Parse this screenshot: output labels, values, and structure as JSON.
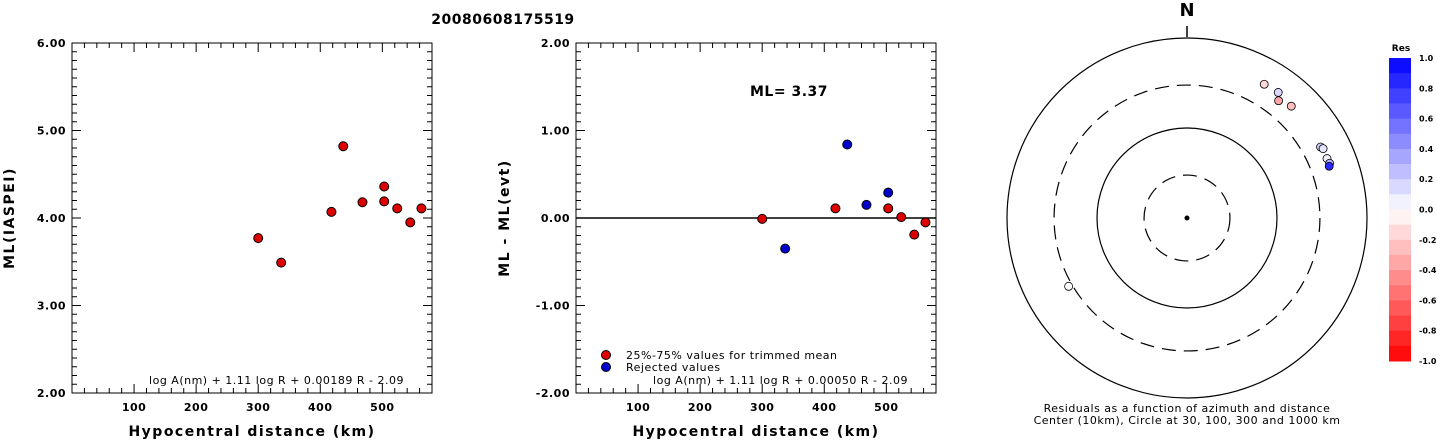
{
  "title": "20080608175519",
  "chart_data": [
    {
      "type": "scatter",
      "ylabel": "ML(IASPEI)",
      "xlabel": "Hypocentral distance (km)",
      "xlim": [
        0,
        580
      ],
      "ylim": [
        2.0,
        6.0
      ],
      "x_ticks": [
        "100",
        "200",
        "300",
        "400",
        "500"
      ],
      "y_ticks": [
        "2.00",
        "3.00",
        "4.00",
        "5.00",
        "6.00"
      ],
      "formula": "log A(nm) + 1.11 log R + 0.00189 R - 2.09",
      "points": [
        {
          "x": 300,
          "y": 3.77,
          "status": "trimmed"
        },
        {
          "x": 337,
          "y": 3.49,
          "status": "trimmed"
        },
        {
          "x": 418,
          "y": 4.07,
          "status": "trimmed"
        },
        {
          "x": 437,
          "y": 4.82,
          "status": "trimmed"
        },
        {
          "x": 468,
          "y": 4.18,
          "status": "trimmed"
        },
        {
          "x": 503,
          "y": 4.36,
          "status": "trimmed"
        },
        {
          "x": 503,
          "y": 4.19,
          "status": "trimmed"
        },
        {
          "x": 524,
          "y": 4.11,
          "status": "trimmed"
        },
        {
          "x": 545,
          "y": 3.95,
          "status": "trimmed"
        },
        {
          "x": 563,
          "y": 4.11,
          "status": "trimmed"
        }
      ]
    },
    {
      "type": "scatter",
      "ylabel": "ML - ML(evt)",
      "xlabel": "Hypocentral distance (km)",
      "xlim": [
        0,
        580
      ],
      "ylim": [
        -2.0,
        2.0
      ],
      "x_ticks": [
        "100",
        "200",
        "300",
        "400",
        "500"
      ],
      "y_ticks": [
        "-2.00",
        "-1.00",
        "0.00",
        "1.00",
        "2.00"
      ],
      "zero_line": true,
      "annotation": "ML= 3.37",
      "formula": "log A(nm) + 1.11 log R + 0.00050 R - 2.09",
      "legend": [
        {
          "label": "25%-75% values for trimmed mean",
          "color": "#dd0000"
        },
        {
          "label": "Rejected values",
          "color": "#0000cc"
        }
      ],
      "points": [
        {
          "x": 300,
          "y": -0.01,
          "status": "trimmed"
        },
        {
          "x": 337,
          "y": -0.35,
          "status": "rejected"
        },
        {
          "x": 418,
          "y": 0.11,
          "status": "trimmed"
        },
        {
          "x": 437,
          "y": 0.84,
          "status": "rejected"
        },
        {
          "x": 468,
          "y": 0.15,
          "status": "rejected"
        },
        {
          "x": 503,
          "y": 0.29,
          "status": "rejected"
        },
        {
          "x": 503,
          "y": 0.11,
          "status": "trimmed"
        },
        {
          "x": 524,
          "y": 0.01,
          "status": "trimmed"
        },
        {
          "x": 545,
          "y": -0.19,
          "status": "trimmed"
        },
        {
          "x": 563,
          "y": -0.05,
          "status": "trimmed"
        }
      ]
    },
    {
      "type": "polar-scatter",
      "north_label": "N",
      "caption_line1": "Residuals as a function of azimuth and distance",
      "caption_line2": "Center (10km), Circle at 30, 100, 300 and 1000 km",
      "rings_km": [
        30,
        100,
        300,
        1000
      ],
      "ring_styles": [
        "dashed",
        "solid",
        "dashed",
        "solid"
      ],
      "points": [
        {
          "azimuth": 38,
          "distance_km": 450,
          "residual": -0.35
        },
        {
          "azimuth": 30,
          "distance_km": 520,
          "residual": -0.15
        },
        {
          "azimuth": 36,
          "distance_km": 530,
          "residual": 0.15
        },
        {
          "azimuth": 43,
          "distance_km": 500,
          "residual": -0.25
        },
        {
          "azimuth": 62,
          "distance_km": 480,
          "residual": 0.2
        },
        {
          "azimuth": 63,
          "distance_km": 498,
          "residual": 0.1
        },
        {
          "azimuth": 67,
          "distance_km": 490,
          "residual": 0.05
        },
        {
          "azimuth": 69,
          "distance_km": 498,
          "residual": 0.3
        },
        {
          "azimuth": 70,
          "distance_km": 480,
          "residual": 0.84
        },
        {
          "azimuth": 240,
          "distance_km": 330,
          "residual": -0.01
        }
      ],
      "colorbar": {
        "title": "Res",
        "ticks": [
          "1.0",
          "0.8",
          "0.6",
          "0.4",
          "0.2",
          "0.0",
          "-0.2",
          "-0.4",
          "-0.6",
          "-0.8",
          "-1.0"
        ]
      }
    }
  ]
}
